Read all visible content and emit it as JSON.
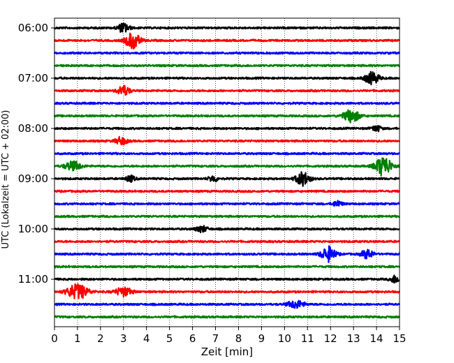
{
  "chart_data": {
    "type": "line",
    "title": "",
    "xlabel": "Zeit  [min]",
    "ylabel": "UTC (Lokalzeit = UTC + 02:00)",
    "xlim": [
      0,
      15
    ],
    "x_ticks": [
      0,
      1,
      2,
      3,
      4,
      5,
      6,
      7,
      8,
      9,
      10,
      11,
      12,
      13,
      14,
      15
    ],
    "y_tick_labels": [
      "06:00",
      "07:00",
      "08:00",
      "09:00",
      "10:00",
      "11:00"
    ],
    "grid": "vertical dotted lines at each minute",
    "trace_colors": [
      "#000000",
      "#ff0000",
      "#0000ff",
      "#008000"
    ],
    "traces": [
      {
        "start": "06:00",
        "color": "#000000",
        "events": [
          [
            3.0,
            0.6,
            0.25
          ]
        ]
      },
      {
        "start": "06:15",
        "color": "#ff0000",
        "events": [
          [
            3.4,
            1.1,
            0.3
          ]
        ]
      },
      {
        "start": "06:30",
        "color": "#0000ff",
        "events": []
      },
      {
        "start": "06:45",
        "color": "#008000",
        "events": []
      },
      {
        "start": "07:00",
        "color": "#000000",
        "events": [
          [
            13.8,
            0.8,
            0.3
          ]
        ]
      },
      {
        "start": "07:15",
        "color": "#ff0000",
        "events": [
          [
            3.0,
            0.7,
            0.25
          ]
        ]
      },
      {
        "start": "07:30",
        "color": "#0000ff",
        "events": []
      },
      {
        "start": "07:45",
        "color": "#008000",
        "events": [
          [
            12.9,
            0.8,
            0.35
          ]
        ]
      },
      {
        "start": "08:00",
        "color": "#000000",
        "events": [
          [
            14.0,
            0.4,
            0.2
          ]
        ]
      },
      {
        "start": "08:15",
        "color": "#ff0000",
        "events": [
          [
            2.9,
            0.5,
            0.25
          ]
        ]
      },
      {
        "start": "08:30",
        "color": "#0000ff",
        "events": []
      },
      {
        "start": "08:45",
        "color": "#008000",
        "events": [
          [
            0.8,
            0.6,
            0.35
          ],
          [
            14.3,
            1.3,
            0.35
          ]
        ]
      },
      {
        "start": "09:00",
        "color": "#000000",
        "events": [
          [
            3.3,
            0.4,
            0.2
          ],
          [
            6.9,
            0.4,
            0.2
          ],
          [
            10.8,
            0.9,
            0.3
          ]
        ]
      },
      {
        "start": "09:15",
        "color": "#ff0000",
        "events": []
      },
      {
        "start": "09:30",
        "color": "#0000ff",
        "events": [
          [
            12.3,
            0.4,
            0.2
          ]
        ]
      },
      {
        "start": "09:45",
        "color": "#008000",
        "events": []
      },
      {
        "start": "10:00",
        "color": "#000000",
        "events": [
          [
            6.4,
            0.4,
            0.25
          ]
        ]
      },
      {
        "start": "10:15",
        "color": "#ff0000",
        "events": []
      },
      {
        "start": "10:30",
        "color": "#0000ff",
        "events": [
          [
            11.9,
            1.0,
            0.3
          ],
          [
            13.6,
            0.6,
            0.25
          ]
        ]
      },
      {
        "start": "10:45",
        "color": "#008000",
        "events": []
      },
      {
        "start": "11:00",
        "color": "#000000",
        "events": [
          [
            14.8,
            0.5,
            0.2
          ]
        ]
      },
      {
        "start": "11:15",
        "color": "#ff0000",
        "events": [
          [
            1.0,
            1.0,
            0.45
          ],
          [
            3.0,
            0.6,
            0.35
          ]
        ]
      },
      {
        "start": "11:30",
        "color": "#0000ff",
        "events": [
          [
            10.5,
            0.5,
            0.35
          ]
        ]
      },
      {
        "start": "11:45",
        "color": "#008000",
        "events": []
      }
    ]
  }
}
